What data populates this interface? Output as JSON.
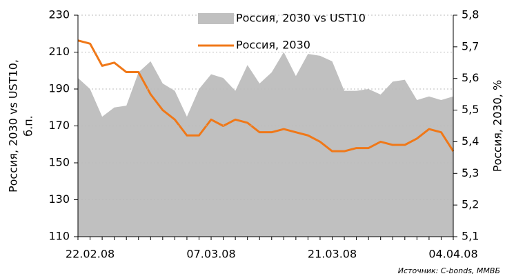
{
  "chart_data": {
    "type": "area-line",
    "ylabel": [
      "Россия, 2030 vs UST10,",
      "б.п."
    ],
    "y2label": "Россия, 2030, %",
    "source": "Источник: C-bonds, ММВБ",
    "categories": [
      null,
      "22.02.08",
      null,
      null,
      null,
      null,
      null,
      null,
      null,
      null,
      null,
      "07.03.08",
      null,
      null,
      null,
      null,
      null,
      null,
      null,
      null,
      null,
      "21.03.08",
      null,
      null,
      null,
      null,
      null,
      null,
      null,
      null,
      null,
      "04.04.08"
    ],
    "series": [
      {
        "name": "Россия, 2030 vs UST10",
        "color": "#c0c0c0",
        "kind": "area",
        "axis": "y",
        "values": [
          196,
          190,
          175,
          180,
          181,
          199,
          205,
          193,
          189,
          175,
          190,
          198,
          196,
          189,
          203,
          193,
          199,
          210,
          197,
          209,
          208,
          205,
          189,
          189,
          190,
          187,
          194,
          195,
          184,
          186,
          184,
          186
        ]
      },
      {
        "name": "Россия, 2030",
        "color": "#f07818",
        "kind": "line",
        "axis": "y2",
        "values": [
          5.72,
          5.71,
          5.64,
          5.65,
          5.62,
          5.62,
          5.55,
          5.5,
          5.47,
          5.42,
          5.42,
          5.47,
          5.45,
          5.47,
          5.46,
          5.43,
          5.43,
          5.44,
          5.43,
          5.42,
          5.4,
          5.37,
          5.37,
          5.38,
          5.38,
          5.4,
          5.39,
          5.39,
          5.41,
          5.44,
          5.43,
          5.37
        ]
      }
    ],
    "ylim": [
      110,
      230
    ],
    "yticks": [
      110,
      130,
      150,
      170,
      190,
      210,
      230
    ],
    "y2lim": [
      5.1,
      5.8
    ],
    "y2ticks": [
      {
        "value": 5.1,
        "label": "5,1"
      },
      {
        "value": 5.2,
        "label": "5,2"
      },
      {
        "value": 5.3,
        "label": "5,3"
      },
      {
        "value": 5.4,
        "label": "5,4"
      },
      {
        "value": 5.5,
        "label": "5,5"
      },
      {
        "value": 5.6,
        "label": "5,6"
      },
      {
        "value": 5.7,
        "label": "5,7"
      },
      {
        "value": 5.8,
        "label": "5,8"
      }
    ],
    "grid": true
  }
}
